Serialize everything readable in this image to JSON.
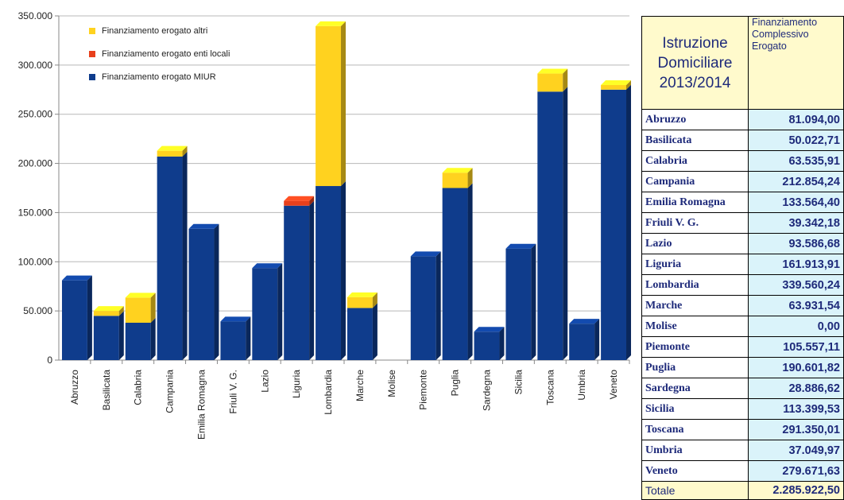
{
  "chart_data": {
    "type": "bar",
    "stacked": true,
    "categories": [
      "Abruzzo",
      "Basilicata",
      "Calabria",
      "Campania",
      "Emilia Romagna",
      "Friuli V. G.",
      "Lazio",
      "Liguria",
      "Lombardia",
      "Marche",
      "Molise",
      "Piemonte",
      "Puglia",
      "Sardegna",
      "Sicilia",
      "Toscana",
      "Umbria",
      "Veneto"
    ],
    "series": [
      {
        "name": "Finanziamento erogato MIUR",
        "color": "#0f3c8c",
        "values": [
          81094,
          45000,
          38000,
          207000,
          133564,
          39342,
          93587,
          157000,
          177000,
          53000,
          0,
          105557,
          175000,
          28887,
          113400,
          273000,
          37050,
          275000
        ]
      },
      {
        "name": "Finanziamento erogato enti locali",
        "color": "#e8401c",
        "values": [
          0,
          0,
          0,
          0,
          0,
          0,
          0,
          4914,
          0,
          0,
          0,
          0,
          0,
          0,
          0,
          0,
          0,
          0
        ]
      },
      {
        "name": "Finanziamento erogato altri",
        "color": "#ffd21f",
        "values": [
          0,
          5023,
          25536,
          5854,
          0,
          0,
          0,
          0,
          162560,
          10932,
          0,
          0,
          15602,
          0,
          0,
          18350,
          0,
          4672
        ]
      }
    ],
    "legend": [
      "Finanziamento erogato altri",
      "Finanziamento erogato enti locali",
      "Finanziamento erogato MIUR"
    ],
    "legend_position": "top-left",
    "ylim": [
      0,
      350000
    ],
    "yticks": [
      "0",
      "50.000",
      "100.000",
      "150.000",
      "200.000",
      "250.000",
      "300.000",
      "350.000"
    ],
    "ytick_values": [
      0,
      50000,
      100000,
      150000,
      200000,
      250000,
      300000,
      350000
    ],
    "grid": true,
    "bar_style": "3d"
  },
  "table": {
    "title_lines": [
      "Istruzione",
      "Domiciliare",
      "2013/2014"
    ],
    "column_header_lines": [
      "Finanziamento",
      "Complessivo",
      "Erogato"
    ],
    "rows": [
      {
        "region": "Abruzzo",
        "value": "81.094,00"
      },
      {
        "region": "Basilicata",
        "value": "50.022,71"
      },
      {
        "region": "Calabria",
        "value": "63.535,91"
      },
      {
        "region": "Campania",
        "value": "212.854,24"
      },
      {
        "region": "Emilia Romagna",
        "value": "133.564,40"
      },
      {
        "region": "Friuli V. G.",
        "value": "39.342,18"
      },
      {
        "region": "Lazio",
        "value": "93.586,68"
      },
      {
        "region": "Liguria",
        "value": "161.913,91"
      },
      {
        "region": "Lombardia",
        "value": "339.560,24"
      },
      {
        "region": "Marche",
        "value": "63.931,54"
      },
      {
        "region": "Molise",
        "value": "0,00"
      },
      {
        "region": "Piemonte",
        "value": "105.557,11"
      },
      {
        "region": "Puglia",
        "value": "190.601,82"
      },
      {
        "region": "Sardegna",
        "value": "28.886,62"
      },
      {
        "region": "Sicilia",
        "value": "113.399,53"
      },
      {
        "region": "Toscana",
        "value": "291.350,01"
      },
      {
        "region": "Umbria",
        "value": "37.049,97"
      },
      {
        "region": "Veneto",
        "value": "279.671,63"
      }
    ],
    "total": {
      "label": "Totale",
      "value": "2.285.922,50"
    }
  }
}
